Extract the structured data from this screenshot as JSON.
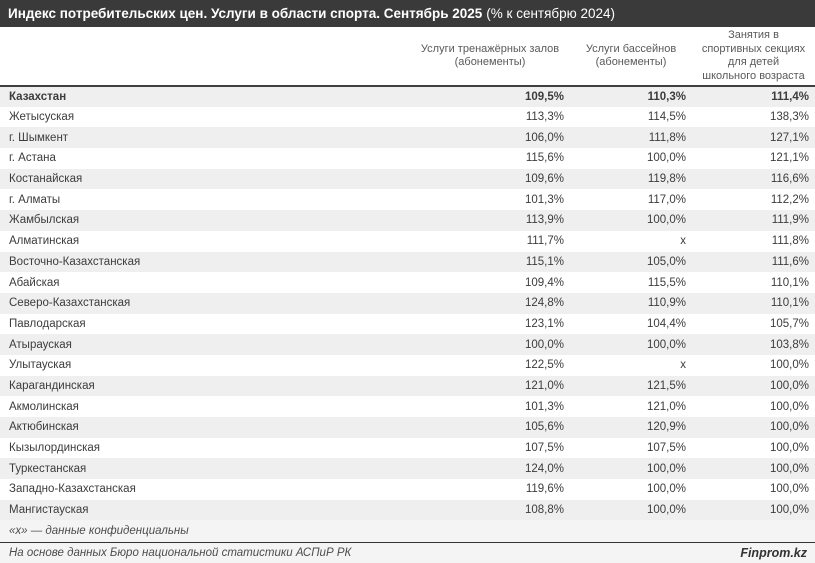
{
  "title_main": "Индекс потребительских цен. Услуги в области спорта. Сентябрь 2025",
  "title_suffix": "(% к сентябрю 2024)",
  "chart_data": {
    "type": "table",
    "title": "Индекс потребительских цен. Услуги в области спорта. Сентябрь 2025 (% к сентябрю 2024)",
    "columns": [
      "Услуги тренажёрных залов (абонементы)",
      "Услуги бассейнов (абонементы)",
      "Занятия в спортивных секциях для детей школьного возраста"
    ],
    "rows": [
      {
        "region": "Казахстан",
        "values": [
          "109,5%",
          "110,3%",
          "111,4%"
        ],
        "bold": true
      },
      {
        "region": "Жетысуская",
        "values": [
          "113,3%",
          "114,5%",
          "138,3%"
        ],
        "bold": false
      },
      {
        "region": "г. Шымкент",
        "values": [
          "106,0%",
          "111,8%",
          "127,1%"
        ],
        "bold": false
      },
      {
        "region": "г. Астана",
        "values": [
          "115,6%",
          "100,0%",
          "121,1%"
        ],
        "bold": false
      },
      {
        "region": "Костанайская",
        "values": [
          "109,6%",
          "119,8%",
          "116,6%"
        ],
        "bold": false
      },
      {
        "region": "г. Алматы",
        "values": [
          "101,3%",
          "117,0%",
          "112,2%"
        ],
        "bold": false
      },
      {
        "region": "Жамбылская",
        "values": [
          "113,9%",
          "100,0%",
          "111,9%"
        ],
        "bold": false
      },
      {
        "region": "Алматинская",
        "values": [
          "111,7%",
          "х",
          "111,8%"
        ],
        "bold": false
      },
      {
        "region": "Восточно-Казахстанская",
        "values": [
          "115,1%",
          "105,0%",
          "111,6%"
        ],
        "bold": false
      },
      {
        "region": "Абайская",
        "values": [
          "109,4%",
          "115,5%",
          "110,1%"
        ],
        "bold": false
      },
      {
        "region": "Северо-Казахстанская",
        "values": [
          "124,8%",
          "110,9%",
          "110,1%"
        ],
        "bold": false
      },
      {
        "region": "Павлодарская",
        "values": [
          "123,1%",
          "104,4%",
          "105,7%"
        ],
        "bold": false
      },
      {
        "region": "Атырауская",
        "values": [
          "100,0%",
          "100,0%",
          "103,8%"
        ],
        "bold": false
      },
      {
        "region": "Улытауская",
        "values": [
          "122,5%",
          "х",
          "100,0%"
        ],
        "bold": false
      },
      {
        "region": "Карагандинская",
        "values": [
          "121,0%",
          "121,5%",
          "100,0%"
        ],
        "bold": false
      },
      {
        "region": "Акмолинская",
        "values": [
          "101,3%",
          "121,0%",
          "100,0%"
        ],
        "bold": false
      },
      {
        "region": "Актюбинская",
        "values": [
          "105,6%",
          "120,9%",
          "100,0%"
        ],
        "bold": false
      },
      {
        "region": "Кызылординская",
        "values": [
          "107,5%",
          "107,5%",
          "100,0%"
        ],
        "bold": false
      },
      {
        "region": "Туркестанская",
        "values": [
          "124,0%",
          "100,0%",
          "100,0%"
        ],
        "bold": false
      },
      {
        "region": "Западно-Казахстанская",
        "values": [
          "119,6%",
          "100,0%",
          "100,0%"
        ],
        "bold": false
      },
      {
        "region": "Мангистауская",
        "values": [
          "108,8%",
          "100,0%",
          "100,0%"
        ],
        "bold": false
      }
    ],
    "footnote": "«х» — данные конфиденциальны",
    "source": "На основе данных Бюро национальной статистики АСПиР РК",
    "brand": "Finprom.kz"
  },
  "colors": {
    "title_bar_bg": "#3a3a3a",
    "stripe": "#efefef",
    "header_border": "#3f3f3f",
    "footnote_bg": "#f4f4f4"
  }
}
